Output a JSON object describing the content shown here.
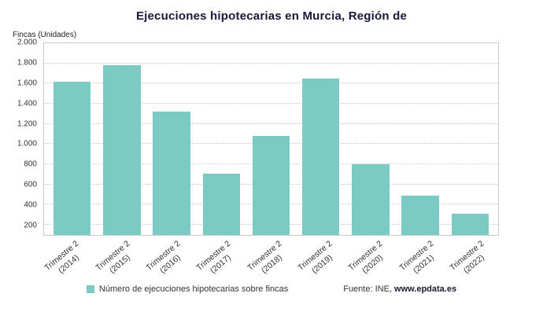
{
  "title": "Ejecuciones hipotecarias en Murcia, Región de",
  "y_axis_label": "Fincas (Unidades)",
  "legend": {
    "label": "Número de ejecuciones hipotecarias sobre fincas"
  },
  "source": {
    "prefix": "Fuente: INE, ",
    "link": "www.epdata.es"
  },
  "colors": {
    "bar": "#7bcac3",
    "grid": "#cccccc",
    "text": "#333333",
    "title": "#18183a"
  },
  "chart_data": {
    "type": "bar",
    "title": "Ejecuciones hipotecarias en Murcia, Región de",
    "xlabel": "",
    "ylabel": "Fincas (Unidades)",
    "categories": [
      "Trimestre 2 (2014)",
      "Trimestre 2 (2015)",
      "Trimestre 2 (2016)",
      "Trimestre 2 (2017)",
      "Trimestre 2 (2018)",
      "Trimestre 2 (2019)",
      "Trimestre 2 (2020)",
      "Trimestre 2 (2021)",
      "Trimestre 2 (2022)"
    ],
    "series": [
      {
        "name": "Número de ejecuciones hipotecarias sobre fincas",
        "values": [
          1620,
          1780,
          1320,
          710,
          1080,
          1650,
          800,
          490,
          310
        ]
      }
    ],
    "ylim": [
      100,
      2000
    ],
    "yticks": [
      {
        "value": 200,
        "label": "200"
      },
      {
        "value": 400,
        "label": "400"
      },
      {
        "value": 600,
        "label": "600"
      },
      {
        "value": 800,
        "label": "800"
      },
      {
        "value": 1000,
        "label": "1.000"
      },
      {
        "value": 1200,
        "label": "1.200"
      },
      {
        "value": 1400,
        "label": "1.400"
      },
      {
        "value": 1600,
        "label": "1.600"
      },
      {
        "value": 1800,
        "label": "1.800"
      },
      {
        "value": 2000,
        "label": "2.000"
      }
    ],
    "bar_color": "#7bcac3",
    "grid": "horizontal-dotted",
    "legend_position": "bottom",
    "source": "Fuente: INE, www.epdata.es"
  }
}
